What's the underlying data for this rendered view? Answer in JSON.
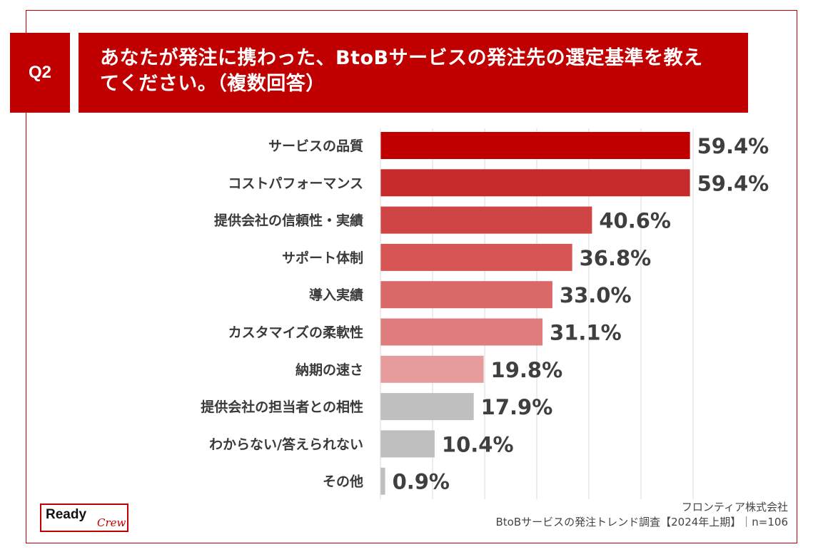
{
  "question": {
    "badge": "Q2",
    "title_line1": "あなたが発注に携わった、BtoBサービスの発注先の選定基準を教え",
    "title_line2": "てください。（複数回答）"
  },
  "chart_data": {
    "type": "bar",
    "orientation": "horizontal",
    "title": "あなたが発注に携わった、BtoBサービスの発注先の選定基準を教えてください。（複数回答）",
    "categories": [
      "サービスの品質",
      "コストパフォーマンス",
      "提供会社の信頼性・実績",
      "サポート体制",
      "導入実績",
      "カスタマイズの柔軟性",
      "納期の速さ",
      "提供会社の担当者との相性",
      "わからない/答えられない",
      "その他"
    ],
    "values": [
      59.4,
      59.4,
      40.6,
      36.8,
      33.0,
      31.1,
      19.8,
      17.9,
      10.4,
      0.9
    ],
    "value_labels": [
      "59.4%",
      "59.4%",
      "40.6%",
      "36.8%",
      "33.0%",
      "31.1%",
      "19.8%",
      "17.9%",
      "10.4%",
      "0.9%"
    ],
    "bar_colors": [
      "#c00000",
      "#c72a2a",
      "#cf4444",
      "#d65656",
      "#da6868",
      "#df7d7d",
      "#e69c9c",
      "#bfbfbf",
      "#bfbfbf",
      "#bfbfbf"
    ],
    "xlim": [
      0,
      60
    ],
    "unit": "%",
    "grid": true
  },
  "logo": {
    "word1": "Ready",
    "word2": "Crew"
  },
  "source": {
    "company": "フロンティア株式会社",
    "survey": "BtoBサービスの発注トレンド調査【2024年上期】｜n=106"
  }
}
